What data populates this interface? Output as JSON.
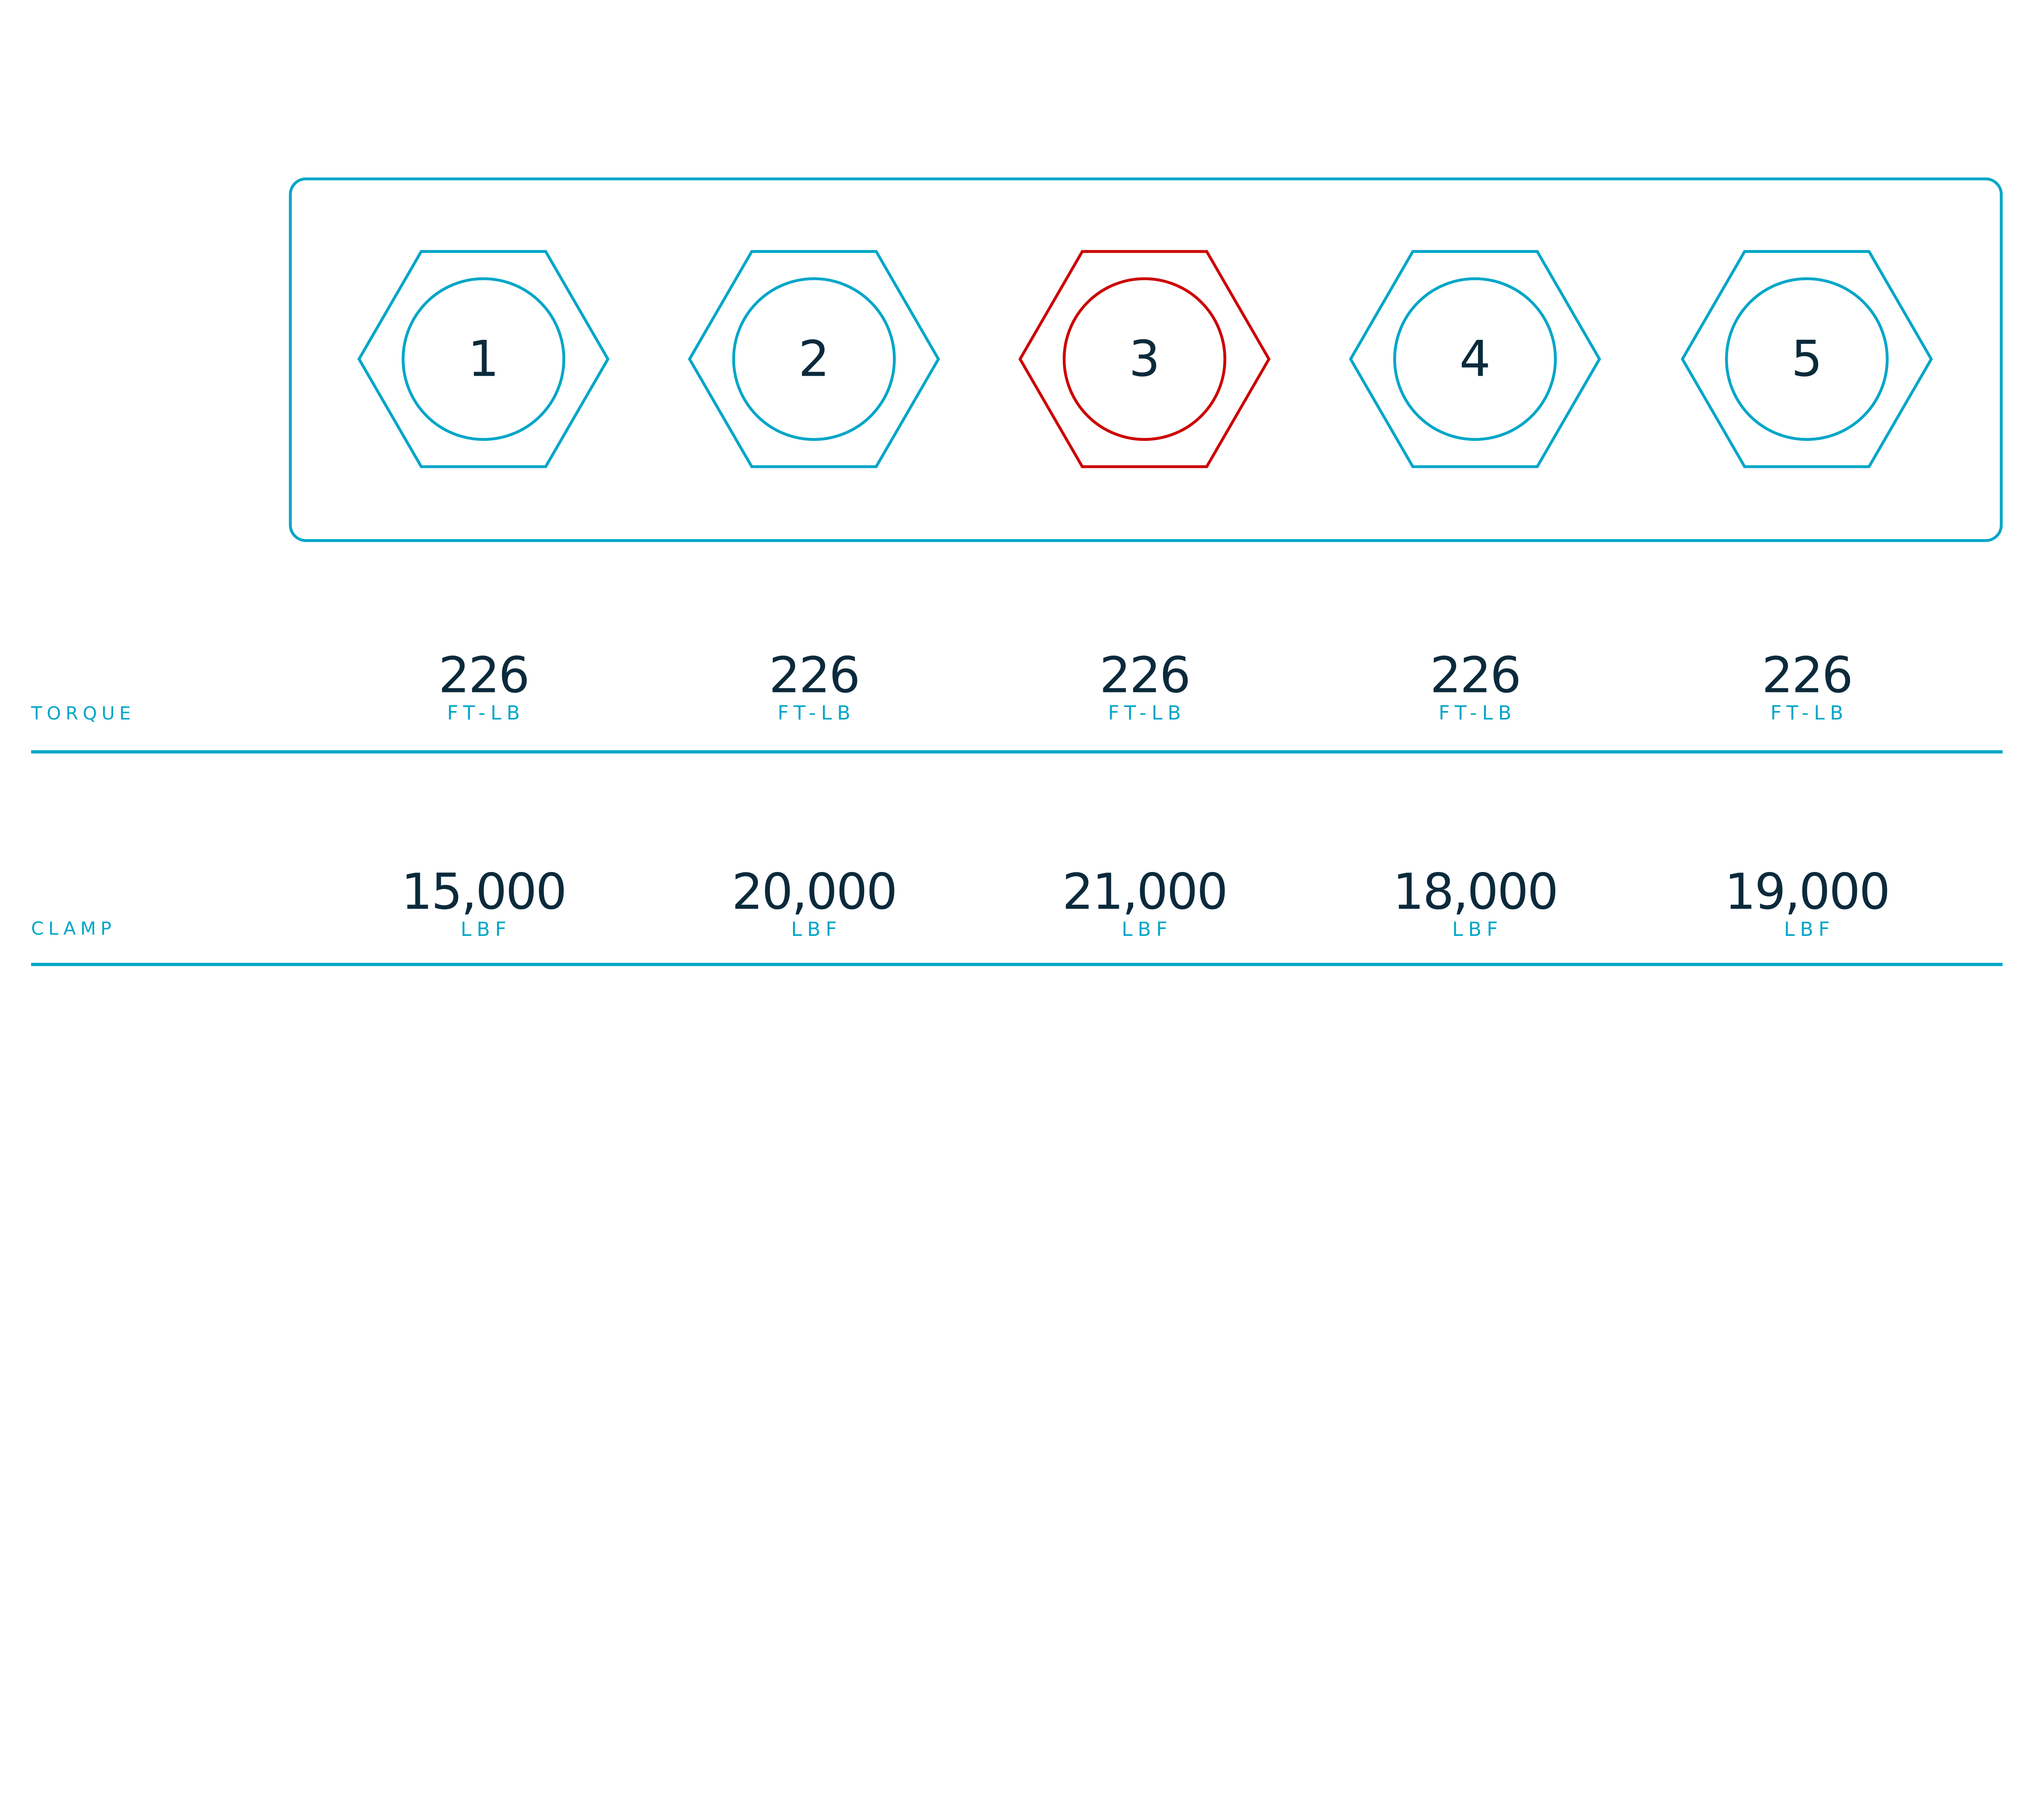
{
  "colors": {
    "accent": "#00a6c8",
    "highlight": "#cc0000",
    "text": "#0b2a3c"
  },
  "bolts": [
    {
      "number": "1",
      "torque": "226",
      "clamp": "15,000",
      "highlighted": false
    },
    {
      "number": "2",
      "torque": "226",
      "clamp": "20,000",
      "highlighted": false
    },
    {
      "number": "3",
      "torque": "226",
      "clamp": "21,000",
      "highlighted": true
    },
    {
      "number": "4",
      "torque": "226",
      "clamp": "18,000",
      "highlighted": false
    },
    {
      "number": "5",
      "torque": "226",
      "clamp": "19,000",
      "highlighted": false
    }
  ],
  "rows": {
    "torque": {
      "label": "TORQUE",
      "unit": "FT-LB"
    },
    "clamp": {
      "label": "CLAMP",
      "unit": "LBF"
    }
  }
}
